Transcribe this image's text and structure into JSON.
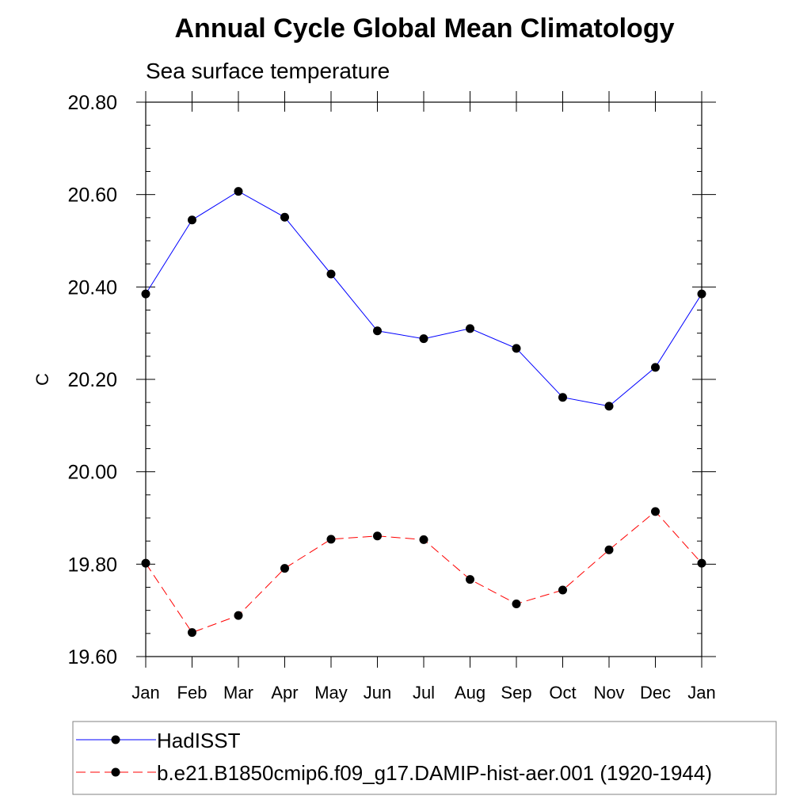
{
  "chart_data": {
    "type": "line",
    "title": "Annual Cycle Global Mean Climatology",
    "subtitle": "Sea surface temperature",
    "xlabel": "",
    "ylabel": "C",
    "categories": [
      "Jan",
      "Feb",
      "Mar",
      "Apr",
      "May",
      "Jun",
      "Jul",
      "Aug",
      "Sep",
      "Oct",
      "Nov",
      "Dec",
      "Jan"
    ],
    "ylim": [
      19.6,
      20.8
    ],
    "yticks": [
      "20.80",
      "20.60",
      "20.40",
      "20.20",
      "20.00",
      "19.80",
      "19.60"
    ],
    "legend_position": "bottom",
    "grid": false,
    "series": [
      {
        "name": "HadISST",
        "color": "#0000ff",
        "dash": "solid",
        "marker": "filled-circle",
        "values": [
          20.385,
          20.545,
          20.607,
          20.551,
          20.428,
          20.305,
          20.288,
          20.31,
          20.267,
          20.161,
          20.142,
          20.226,
          20.385
        ]
      },
      {
        "name": "b.e21.B1850cmip6.f09_g17.DAMIP-hist-aer.001 (1920-1944)",
        "color": "#ff0000",
        "dash": "dashed",
        "marker": "filled-circle",
        "values": [
          19.802,
          19.652,
          19.689,
          19.791,
          19.854,
          19.861,
          19.853,
          19.767,
          19.714,
          19.744,
          19.831,
          19.914,
          19.802
        ]
      }
    ]
  }
}
